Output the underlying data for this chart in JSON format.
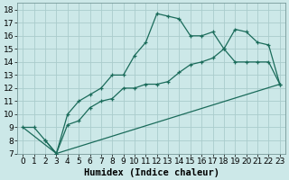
{
  "xlabel": "Humidex (Indice chaleur)",
  "bg_color": "#cce8e8",
  "grid_color": "#aacccc",
  "line_color": "#1a6b5a",
  "xlim": [
    -0.5,
    23.5
  ],
  "ylim": [
    7,
    18.5
  ],
  "xticks": [
    0,
    1,
    2,
    3,
    4,
    5,
    6,
    7,
    8,
    9,
    10,
    11,
    12,
    13,
    14,
    15,
    16,
    17,
    18,
    19,
    20,
    21,
    22,
    23
  ],
  "yticks": [
    7,
    8,
    9,
    10,
    11,
    12,
    13,
    14,
    15,
    16,
    17,
    18
  ],
  "curve1_x": [
    0,
    1,
    2,
    3,
    4,
    5,
    6,
    7,
    8,
    9,
    10,
    11,
    12,
    13,
    14,
    15,
    16,
    17,
    18,
    19,
    20,
    21,
    22,
    23
  ],
  "curve1_y": [
    9,
    9,
    8,
    7,
    10,
    11,
    11.5,
    12,
    13,
    13,
    14.5,
    15.5,
    17.7,
    17.5,
    17.3,
    16,
    16,
    16.3,
    15.0,
    16.5,
    16.3,
    15.5,
    15.3,
    12.3
  ],
  "curve2_x": [
    2,
    3,
    4,
    5,
    6,
    7,
    8,
    9,
    10,
    11,
    12,
    13,
    14,
    15,
    16,
    17,
    18,
    19,
    20,
    21,
    22,
    23
  ],
  "curve2_y": [
    8,
    7,
    9.2,
    9.5,
    10.5,
    11,
    11.2,
    12,
    12,
    12.3,
    12.3,
    12.5,
    13.2,
    13.8,
    14.0,
    14.3,
    15.0,
    14.0,
    14.0,
    14.0,
    14.0,
    12.3
  ],
  "curve3_x": [
    0,
    3,
    23
  ],
  "curve3_y": [
    9,
    7,
    12.3
  ],
  "xlabel_fontsize": 7.5,
  "tick_fontsize": 6.5
}
